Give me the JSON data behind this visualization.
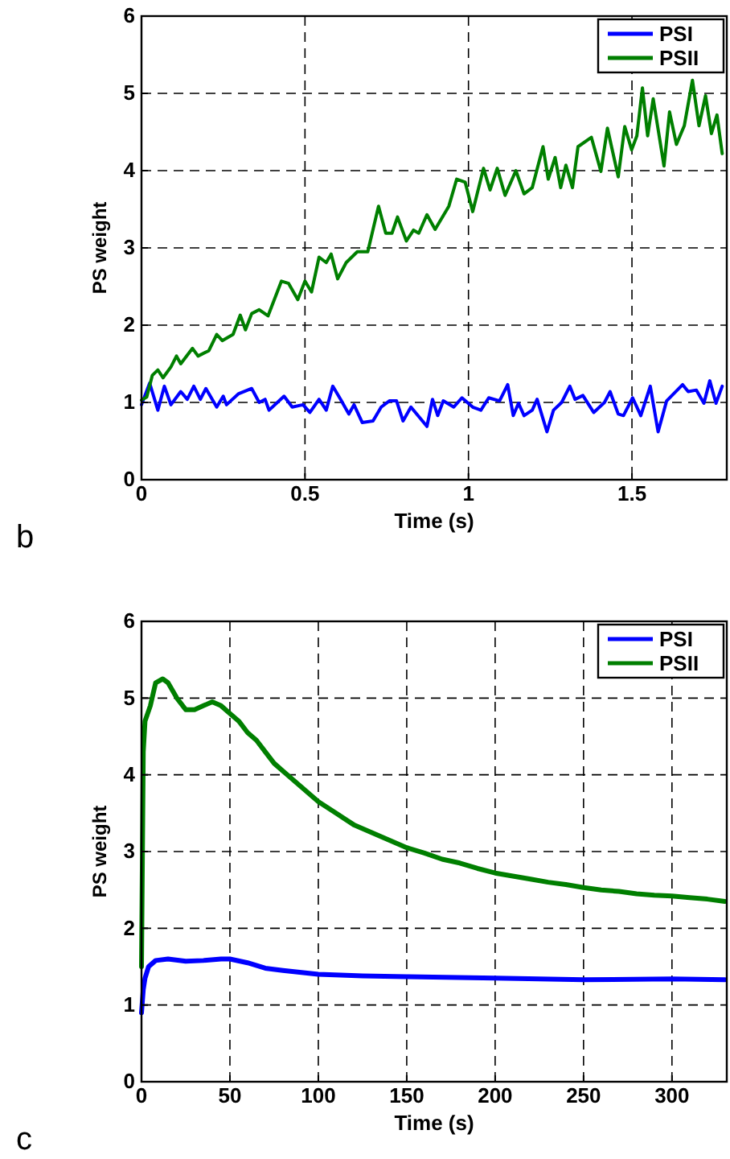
{
  "chart_data": [
    {
      "type": "line",
      "xlabel": "Time (s)",
      "ylabel": "PS weight",
      "annotations": [
        "b"
      ],
      "xlim": [
        0,
        1.79
      ],
      "xticks": [
        0,
        0.5,
        1,
        1.5
      ],
      "ylim": [
        0,
        6
      ],
      "yticks": [
        0,
        1,
        2,
        3,
        4,
        5,
        6
      ],
      "grid": true,
      "legend": "top right",
      "line_style": "solid",
      "series": [
        {
          "name": "PSI",
          "color": "#0000ff",
          "x": [
            0,
            0.025,
            0.05,
            0.07,
            0.09,
            0.12,
            0.14,
            0.16,
            0.18,
            0.197,
            0.23,
            0.25,
            0.26,
            0.296,
            0.337,
            0.36,
            0.378,
            0.39,
            0.436,
            0.461,
            0.494,
            0.515,
            0.543,
            0.565,
            0.585,
            0.609,
            0.634,
            0.65,
            0.675,
            0.708,
            0.733,
            0.758,
            0.78,
            0.8,
            0.824,
            0.873,
            0.89,
            0.906,
            0.923,
            0.955,
            0.98,
            1.013,
            1.038,
            1.062,
            1.095,
            1.12,
            1.137,
            1.153,
            1.17,
            1.195,
            1.21,
            1.24,
            1.26,
            1.285,
            1.31,
            1.326,
            1.35,
            1.383,
            1.416,
            1.433,
            1.458,
            1.474,
            1.502,
            1.527,
            1.556,
            1.58,
            1.606,
            1.655,
            1.672,
            1.697,
            1.72,
            1.738,
            1.757,
            1.776
          ],
          "values": [
            0.97,
            1.25,
            0.9,
            1.21,
            0.97,
            1.14,
            1.04,
            1.21,
            1.04,
            1.18,
            0.94,
            1.08,
            0.97,
            1.11,
            1.18,
            1.0,
            1.04,
            0.9,
            1.08,
            0.94,
            0.97,
            0.87,
            1.04,
            0.9,
            1.21,
            1.04,
            0.85,
            0.97,
            0.74,
            0.76,
            0.94,
            1.02,
            1.02,
            0.76,
            0.94,
            0.69,
            1.04,
            0.83,
            1.02,
            0.94,
            1.06,
            0.94,
            0.9,
            1.06,
            1.02,
            1.23,
            0.83,
            0.99,
            0.83,
            0.9,
            1.04,
            0.62,
            0.9,
            1.0,
            1.21,
            1.04,
            1.09,
            0.87,
            1.0,
            1.14,
            0.85,
            0.83,
            1.06,
            0.83,
            1.21,
            0.62,
            1.02,
            1.23,
            1.14,
            1.16,
            0.99,
            1.28,
            0.99,
            1.21
          ]
        },
        {
          "name": "PSII",
          "color": "#007f00",
          "x": [
            0,
            0.016,
            0.033,
            0.05,
            0.066,
            0.09,
            0.107,
            0.12,
            0.156,
            0.173,
            0.206,
            0.23,
            0.247,
            0.28,
            0.302,
            0.318,
            0.337,
            0.36,
            0.387,
            0.428,
            0.45,
            0.478,
            0.5,
            0.52,
            0.543,
            0.565,
            0.58,
            0.6,
            0.626,
            0.66,
            0.692,
            0.725,
            0.747,
            0.766,
            0.783,
            0.81,
            0.832,
            0.848,
            0.873,
            0.898,
            0.94,
            0.964,
            0.99,
            1.013,
            1.046,
            1.066,
            1.088,
            1.112,
            1.145,
            1.17,
            1.195,
            1.228,
            1.244,
            1.265,
            1.282,
            1.298,
            1.318,
            1.335,
            1.376,
            1.405,
            1.425,
            1.458,
            1.478,
            1.499,
            1.515,
            1.532,
            1.548,
            1.565,
            1.598,
            1.615,
            1.636,
            1.66,
            1.685,
            1.705,
            1.725,
            1.743,
            1.76,
            1.776
          ],
          "values": [
            1.03,
            1.07,
            1.35,
            1.42,
            1.32,
            1.46,
            1.6,
            1.5,
            1.7,
            1.6,
            1.67,
            1.88,
            1.8,
            1.88,
            2.13,
            1.94,
            2.15,
            2.2,
            2.12,
            2.57,
            2.54,
            2.33,
            2.57,
            2.43,
            2.88,
            2.81,
            2.92,
            2.6,
            2.81,
            2.95,
            2.95,
            3.54,
            3.19,
            3.19,
            3.4,
            3.09,
            3.23,
            3.19,
            3.43,
            3.24,
            3.54,
            3.89,
            3.85,
            3.47,
            4.03,
            3.75,
            4.03,
            3.68,
            4.0,
            3.7,
            3.78,
            4.31,
            3.89,
            4.17,
            3.78,
            4.07,
            3.78,
            4.31,
            4.43,
            3.99,
            4.55,
            3.92,
            4.57,
            4.27,
            4.45,
            5.07,
            4.45,
            4.93,
            4.06,
            4.76,
            4.34,
            4.58,
            5.17,
            4.58,
            4.97,
            4.48,
            4.72,
            4.22
          ]
        }
      ]
    },
    {
      "type": "line",
      "xlabel": "Time (s)",
      "ylabel": "PS weight",
      "annotations": [
        "c"
      ],
      "xlim": [
        0,
        331
      ],
      "xticks": [
        0,
        50,
        100,
        150,
        200,
        250,
        300
      ],
      "ylim": [
        0,
        6
      ],
      "yticks": [
        0,
        1,
        2,
        3,
        4,
        5,
        6
      ],
      "grid": true,
      "legend": "top right",
      "line_style": "solid",
      "series": [
        {
          "name": "PSI",
          "color": "#0000ff",
          "x": [
            0,
            1,
            2,
            4,
            8,
            15,
            25,
            35,
            45,
            50,
            60,
            70,
            80,
            100,
            125,
            150,
            200,
            250,
            300,
            330
          ],
          "values": [
            0.9,
            1.2,
            1.35,
            1.5,
            1.58,
            1.6,
            1.57,
            1.58,
            1.6,
            1.6,
            1.55,
            1.48,
            1.45,
            1.4,
            1.38,
            1.37,
            1.35,
            1.33,
            1.34,
            1.33
          ]
        },
        {
          "name": "PSII",
          "color": "#007f00",
          "x": [
            0,
            1,
            2,
            5,
            8,
            12,
            15,
            20,
            25,
            30,
            35,
            40,
            45,
            50,
            55,
            60,
            65,
            70,
            75,
            80,
            90,
            100,
            110,
            120,
            130,
            140,
            150,
            160,
            170,
            180,
            190,
            200,
            210,
            220,
            230,
            240,
            250,
            260,
            270,
            280,
            290,
            300,
            310,
            320,
            330
          ],
          "values": [
            1.5,
            4.3,
            4.7,
            4.9,
            5.2,
            5.25,
            5.2,
            5.0,
            4.85,
            4.85,
            4.9,
            4.95,
            4.9,
            4.8,
            4.7,
            4.55,
            4.45,
            4.3,
            4.15,
            4.05,
            3.85,
            3.65,
            3.5,
            3.35,
            3.25,
            3.15,
            3.05,
            2.98,
            2.9,
            2.85,
            2.78,
            2.72,
            2.68,
            2.64,
            2.6,
            2.57,
            2.53,
            2.5,
            2.48,
            2.45,
            2.43,
            2.42,
            2.4,
            2.38,
            2.35
          ]
        }
      ]
    }
  ]
}
